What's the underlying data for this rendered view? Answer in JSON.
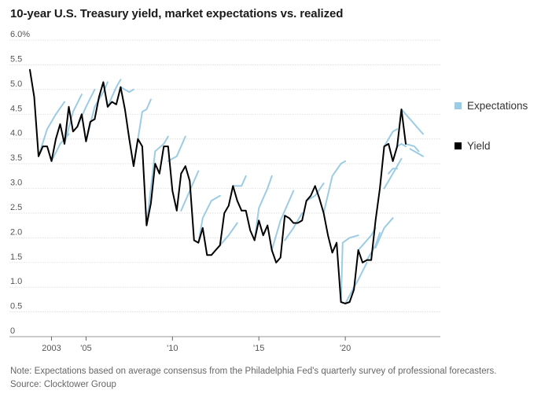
{
  "title": "10-year U.S. Treasury yield, market expectations vs. realized",
  "note": "Note: Expectations based on average consensus from the Philadelphia Fed's quarterly survey of professional forecasters.",
  "source": "Source: Clocktower Group",
  "legend": [
    {
      "label": "Expectations",
      "color": "#9ccce4"
    },
    {
      "label": "Yield",
      "color": "#000000"
    }
  ],
  "chart_data": {
    "type": "line",
    "title": "10-year U.S. Treasury yield, market expectations vs. realized",
    "xlabel": "",
    "ylabel": "",
    "xlim": [
      2001.75,
      2025.5
    ],
    "ylim": [
      0,
      6.0
    ],
    "grid": true,
    "legend_position": "right",
    "x_tick_labels": [
      {
        "x": 2003,
        "label": "2003"
      },
      {
        "x": 2005,
        "label": "'05"
      },
      {
        "x": 2010,
        "label": "'10"
      },
      {
        "x": 2015,
        "label": "'15"
      },
      {
        "x": 2020,
        "label": "'20"
      }
    ],
    "y_tick_labels": [
      {
        "y": 6.0,
        "label": "6.0%"
      },
      {
        "y": 5.5,
        "label": "5.5"
      },
      {
        "y": 5.0,
        "label": "5.0"
      },
      {
        "y": 4.5,
        "label": "4.5"
      },
      {
        "y": 4.0,
        "label": "4.0"
      },
      {
        "y": 3.5,
        "label": "3.5"
      },
      {
        "y": 3.0,
        "label": "3.0"
      },
      {
        "y": 2.5,
        "label": "2.5"
      },
      {
        "y": 2.0,
        "label": "2.0"
      },
      {
        "y": 1.5,
        "label": "1.5"
      },
      {
        "y": 1.0,
        "label": "1.0"
      },
      {
        "y": 0.5,
        "label": "0.5"
      },
      {
        "y": 0,
        "label": "0"
      }
    ],
    "series": [
      {
        "name": "Yield",
        "color": "#000000",
        "points": [
          [
            2001.75,
            5.4
          ],
          [
            2002.0,
            4.85
          ],
          [
            2002.25,
            3.65
          ],
          [
            2002.5,
            3.85
          ],
          [
            2002.75,
            3.85
          ],
          [
            2003.0,
            3.55
          ],
          [
            2003.25,
            4.0
          ],
          [
            2003.5,
            4.3
          ],
          [
            2003.75,
            3.9
          ],
          [
            2004.0,
            4.65
          ],
          [
            2004.25,
            4.15
          ],
          [
            2004.5,
            4.25
          ],
          [
            2004.75,
            4.5
          ],
          [
            2005.0,
            3.95
          ],
          [
            2005.25,
            4.35
          ],
          [
            2005.5,
            4.4
          ],
          [
            2005.75,
            4.85
          ],
          [
            2006.0,
            5.15
          ],
          [
            2006.25,
            4.65
          ],
          [
            2006.5,
            4.75
          ],
          [
            2006.75,
            4.7
          ],
          [
            2007.0,
            5.05
          ],
          [
            2007.25,
            4.6
          ],
          [
            2007.5,
            4.0
          ],
          [
            2007.75,
            3.45
          ],
          [
            2008.0,
            4.0
          ],
          [
            2008.25,
            3.85
          ],
          [
            2008.5,
            2.25
          ],
          [
            2008.75,
            2.7
          ],
          [
            2009.0,
            3.5
          ],
          [
            2009.25,
            3.3
          ],
          [
            2009.5,
            3.85
          ],
          [
            2009.75,
            3.85
          ],
          [
            2010.0,
            2.95
          ],
          [
            2010.25,
            2.55
          ],
          [
            2010.5,
            3.3
          ],
          [
            2010.75,
            3.45
          ],
          [
            2011.0,
            3.15
          ],
          [
            2011.25,
            1.95
          ],
          [
            2011.5,
            1.9
          ],
          [
            2011.75,
            2.2
          ],
          [
            2012.0,
            1.65
          ],
          [
            2012.25,
            1.65
          ],
          [
            2012.5,
            1.75
          ],
          [
            2012.75,
            1.85
          ],
          [
            2013.0,
            2.5
          ],
          [
            2013.25,
            2.65
          ],
          [
            2013.5,
            3.05
          ],
          [
            2013.75,
            2.75
          ],
          [
            2014.0,
            2.55
          ],
          [
            2014.25,
            2.55
          ],
          [
            2014.5,
            2.15
          ],
          [
            2014.75,
            1.95
          ],
          [
            2015.0,
            2.35
          ],
          [
            2015.25,
            2.05
          ],
          [
            2015.5,
            2.25
          ],
          [
            2015.75,
            1.75
          ],
          [
            2016.0,
            1.5
          ],
          [
            2016.25,
            1.6
          ],
          [
            2016.5,
            2.45
          ],
          [
            2016.75,
            2.4
          ],
          [
            2017.0,
            2.3
          ],
          [
            2017.25,
            2.3
          ],
          [
            2017.5,
            2.35
          ],
          [
            2017.75,
            2.75
          ],
          [
            2018.0,
            2.85
          ],
          [
            2018.25,
            3.05
          ],
          [
            2018.5,
            2.8
          ],
          [
            2018.75,
            2.5
          ],
          [
            2019.0,
            2.05
          ],
          [
            2019.25,
            1.7
          ],
          [
            2019.5,
            1.9
          ],
          [
            2019.75,
            0.7
          ],
          [
            2020.0,
            0.67
          ],
          [
            2020.25,
            0.7
          ],
          [
            2020.5,
            0.95
          ],
          [
            2020.75,
            1.75
          ],
          [
            2021.0,
            1.5
          ],
          [
            2021.25,
            1.55
          ],
          [
            2021.5,
            1.55
          ],
          [
            2021.75,
            2.35
          ],
          [
            2022.0,
            3.0
          ],
          [
            2022.25,
            3.85
          ],
          [
            2022.5,
            3.9
          ],
          [
            2022.75,
            3.55
          ],
          [
            2023.0,
            3.85
          ],
          [
            2023.25,
            4.6
          ],
          [
            2023.5,
            3.9
          ]
        ]
      },
      {
        "name": "Expectations",
        "color": "#9ccce4",
        "segments": [
          [
            [
              2002.25,
              3.65
            ],
            [
              2002.75,
              4.2
            ],
            [
              2003.25,
              4.5
            ],
            [
              2003.75,
              4.75
            ]
          ],
          [
            [
              2003.0,
              3.55
            ],
            [
              2003.5,
              3.9
            ],
            [
              2004.0,
              4.1
            ]
          ],
          [
            [
              2003.75,
              3.9
            ],
            [
              2004.25,
              4.55
            ],
            [
              2004.75,
              4.9
            ]
          ],
          [
            [
              2004.5,
              4.25
            ],
            [
              2005.0,
              4.65
            ],
            [
              2005.5,
              5.0
            ]
          ],
          [
            [
              2005.0,
              3.95
            ],
            [
              2005.5,
              4.65
            ],
            [
              2006.0,
              4.95
            ],
            [
              2006.25,
              5.15
            ]
          ],
          [
            [
              2006.25,
              4.65
            ],
            [
              2006.75,
              5.05
            ],
            [
              2007.0,
              5.2
            ]
          ],
          [
            [
              2007.0,
              5.05
            ],
            [
              2007.5,
              4.95
            ],
            [
              2007.75,
              5.0
            ]
          ],
          [
            [
              2007.75,
              3.45
            ],
            [
              2008.25,
              4.55
            ],
            [
              2008.5,
              4.6
            ],
            [
              2008.75,
              4.8
            ]
          ],
          [
            [
              2008.5,
              2.25
            ],
            [
              2009.0,
              3.75
            ],
            [
              2009.5,
              3.9
            ],
            [
              2009.75,
              4.05
            ]
          ],
          [
            [
              2009.75,
              3.55
            ],
            [
              2010.25,
              3.65
            ],
            [
              2010.75,
              4.05
            ]
          ],
          [
            [
              2010.5,
              2.55
            ],
            [
              2011.0,
              2.95
            ],
            [
              2011.5,
              3.35
            ]
          ],
          [
            [
              2011.5,
              1.9
            ],
            [
              2011.75,
              2.4
            ],
            [
              2012.25,
              2.75
            ],
            [
              2012.75,
              2.85
            ]
          ],
          [
            [
              2012.75,
              1.85
            ],
            [
              2013.25,
              2.05
            ],
            [
              2013.75,
              2.3
            ]
          ],
          [
            [
              2013.5,
              3.05
            ],
            [
              2014.0,
              3.05
            ],
            [
              2014.25,
              3.25
            ]
          ],
          [
            [
              2014.75,
              1.95
            ],
            [
              2015.0,
              2.6
            ],
            [
              2015.5,
              3.0
            ],
            [
              2015.75,
              3.25
            ]
          ],
          [
            [
              2015.75,
              1.75
            ],
            [
              2016.25,
              2.35
            ],
            [
              2016.75,
              2.75
            ],
            [
              2017.0,
              2.95
            ]
          ],
          [
            [
              2016.5,
              1.95
            ],
            [
              2017.0,
              2.2
            ],
            [
              2017.5,
              2.5
            ]
          ],
          [
            [
              2017.75,
              2.75
            ],
            [
              2018.25,
              2.85
            ],
            [
              2018.75,
              3.1
            ]
          ],
          [
            [
              2018.75,
              2.5
            ],
            [
              2019.25,
              3.25
            ],
            [
              2019.75,
              3.5
            ],
            [
              2020.0,
              3.55
            ]
          ],
          [
            [
              2019.75,
              0.7
            ],
            [
              2019.85,
              1.9
            ],
            [
              2020.25,
              2.0
            ],
            [
              2020.75,
              2.05
            ]
          ],
          [
            [
              2020.0,
              0.67
            ],
            [
              2020.5,
              1.0
            ],
            [
              2020.75,
              1.15
            ],
            [
              2021.25,
              1.5
            ]
          ],
          [
            [
              2020.75,
              1.75
            ],
            [
              2021.0,
              1.85
            ],
            [
              2021.5,
              2.05
            ],
            [
              2021.75,
              2.2
            ]
          ],
          [
            [
              2021.25,
              1.55
            ],
            [
              2021.75,
              1.85
            ],
            [
              2022.0,
              2.1
            ]
          ],
          [
            [
              2021.75,
              1.8
            ],
            [
              2022.25,
              2.2
            ],
            [
              2022.75,
              2.4
            ]
          ],
          [
            [
              2022.25,
              3.85
            ],
            [
              2022.75,
              4.15
            ],
            [
              2023.0,
              4.2
            ]
          ],
          [
            [
              2022.5,
              3.3
            ],
            [
              2022.75,
              3.4
            ],
            [
              2023.0,
              3.4
            ]
          ],
          [
            [
              2022.75,
              3.55
            ],
            [
              2023.0,
              3.85
            ],
            [
              2023.25,
              3.9
            ],
            [
              2023.5,
              3.85
            ]
          ],
          [
            [
              2022.25,
              3.0
            ],
            [
              2022.75,
              3.3
            ],
            [
              2023.25,
              3.6
            ]
          ],
          [
            [
              2023.25,
              4.6
            ],
            [
              2023.75,
              4.4
            ],
            [
              2024.25,
              4.2
            ],
            [
              2024.5,
              4.1
            ]
          ],
          [
            [
              2023.5,
              3.9
            ],
            [
              2024.0,
              3.85
            ],
            [
              2024.25,
              3.75
            ]
          ],
          [
            [
              2023.75,
              3.8
            ],
            [
              2024.25,
              3.7
            ],
            [
              2024.5,
              3.65
            ]
          ]
        ]
      }
    ]
  }
}
